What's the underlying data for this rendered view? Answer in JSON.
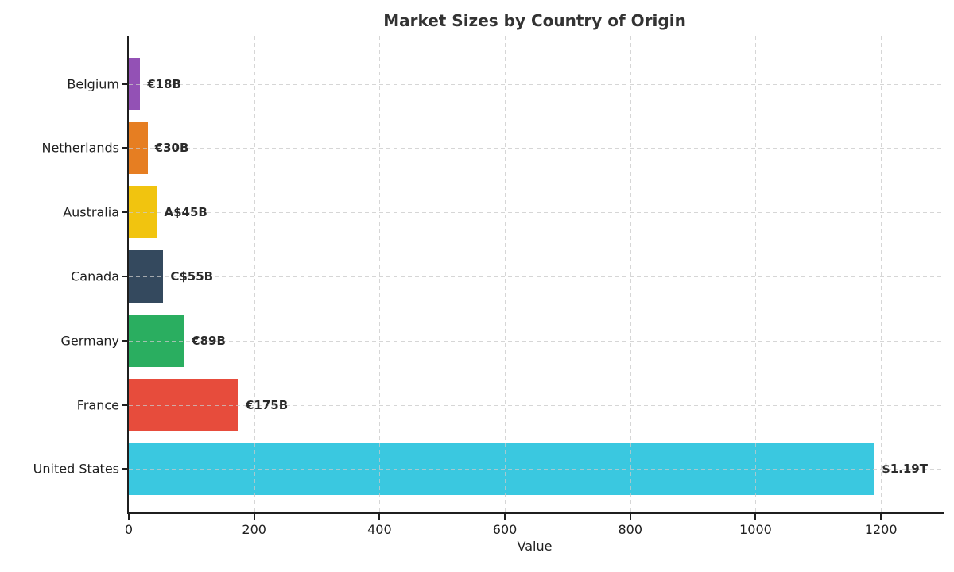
{
  "chart_data": {
    "type": "bar",
    "orientation": "horizontal",
    "title": "Market Sizes by Country of Origin",
    "xlabel": "Value",
    "ylabel": "",
    "categories": [
      "Belgium",
      "Netherlands",
      "Australia",
      "Canada",
      "Germany",
      "France",
      "United States"
    ],
    "values": [
      18,
      30,
      45,
      55,
      89,
      175,
      1190
    ],
    "value_labels": [
      "€18B",
      "€30B",
      "A$45B",
      "C$55B",
      "€89B",
      "€175B",
      "$1.19T"
    ],
    "bar_colors": [
      "#9351b5",
      "#e67e22",
      "#f1c40f",
      "#34495e",
      "#2aae60",
      "#e74c3c",
      "#3ac8e0"
    ],
    "xlim": [
      0,
      1300
    ],
    "xticks": [
      0,
      200,
      400,
      600,
      800,
      1000,
      1200
    ],
    "grid": true,
    "legend": "none"
  },
  "colors": {
    "axis": "#1f1f1f",
    "grid": "#c9c9c9",
    "title_text": "#333333",
    "tick_text": "#1f1f1f",
    "bar_label_text": "#2b2b2b",
    "background": "#ffffff"
  }
}
